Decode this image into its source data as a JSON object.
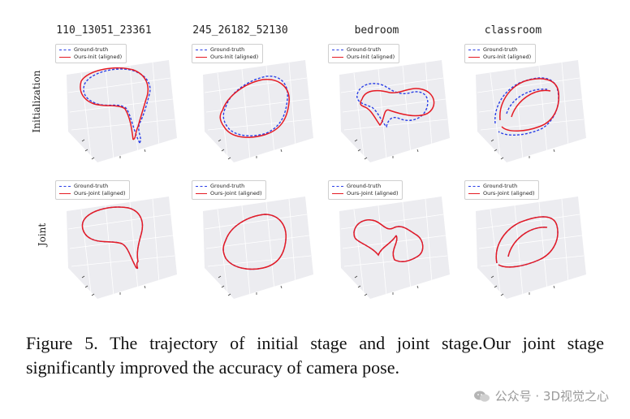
{
  "figure": {
    "columns": [
      "110_13051_23361",
      "245_26182_52130",
      "bedroom",
      "classroom"
    ],
    "rows": [
      "Initialization",
      "Joint"
    ],
    "legend": {
      "ground_truth": "Ground-truth",
      "init": "Ours-Init (aligned)",
      "joint": "Ours-Joint (aligned)"
    },
    "colors": {
      "ground_truth": "#2a3fe6",
      "ours": "#e51b24",
      "pane": "#ececf0",
      "grid": "#ffffff"
    }
  },
  "caption": "Figure 5.  The trajectory of initial stage and joint stage.Our joint stage significantly improved the accuracy of camera pose.",
  "watermark": {
    "text": "公众号 · 3D视觉之心",
    "icon": "wechat-icon"
  }
}
